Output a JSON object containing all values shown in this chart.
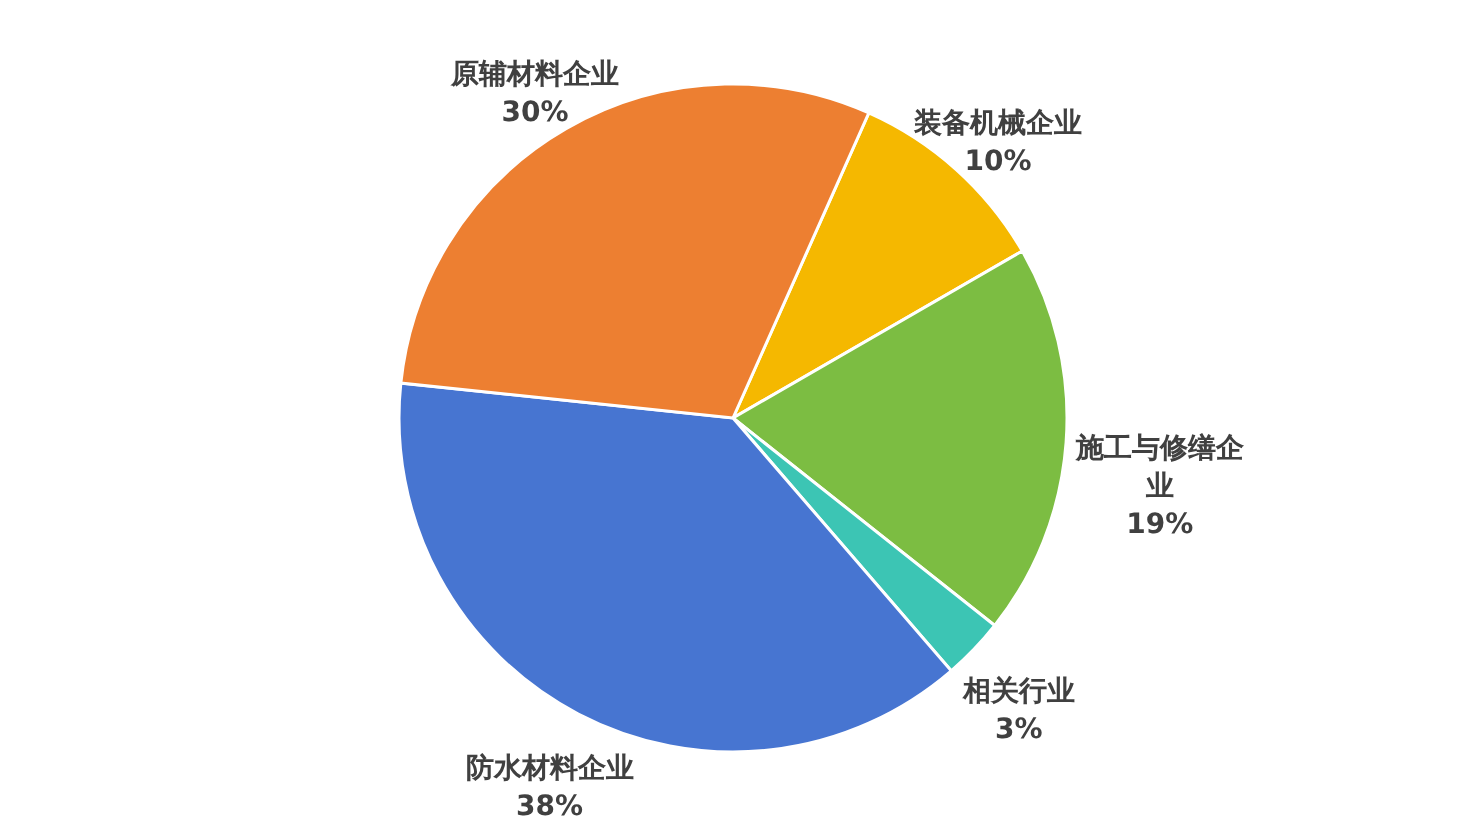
{
  "chart_data": {
    "type": "pie",
    "categories": [
      "装备机械企业",
      "施工与修缮企业",
      "相关行业",
      "防水材料企业",
      "原辅材料企业"
    ],
    "values": [
      10,
      19,
      3,
      38,
      30
    ],
    "colors": [
      "#f5b800",
      "#7cbd42",
      "#3cc5b4",
      "#4775d1",
      "#ed7f31"
    ],
    "value_labels": [
      "10%",
      "19%",
      "3%",
      "38%",
      "30%"
    ]
  }
}
